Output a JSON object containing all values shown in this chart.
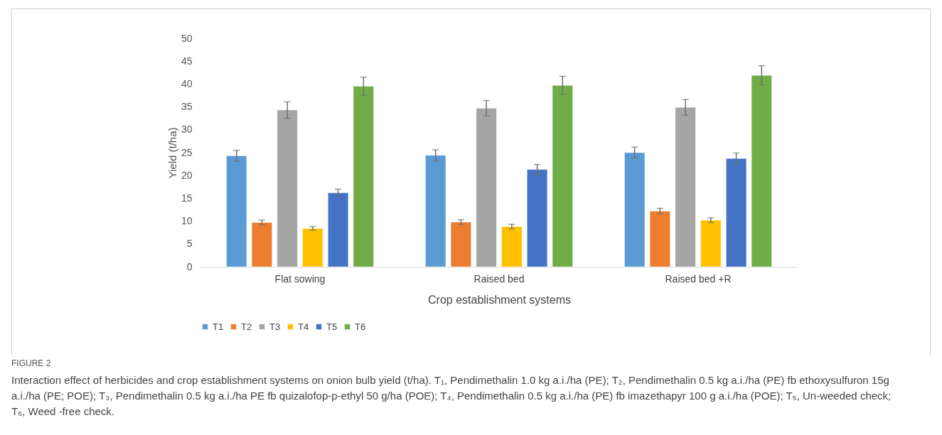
{
  "chart_data": {
    "type": "bar",
    "xlabel": "Crop establishment systems",
    "ylabel": "Yield (t/ha)",
    "categories": [
      "Flat sowing",
      "Raised bed",
      "Raised bed +R"
    ],
    "series": [
      {
        "name": "T1",
        "color": "#5b9bd5",
        "values": [
          24.3,
          24.4,
          25.0
        ],
        "errors": [
          1.2,
          1.2,
          1.2
        ]
      },
      {
        "name": "T2",
        "color": "#ed7d31",
        "values": [
          9.7,
          9.8,
          12.2
        ],
        "errors": [
          0.5,
          0.5,
          0.6
        ]
      },
      {
        "name": "T3",
        "color": "#a5a5a5",
        "values": [
          34.3,
          34.7,
          34.9
        ],
        "errors": [
          1.8,
          1.7,
          1.7
        ]
      },
      {
        "name": "T4",
        "color": "#ffc000",
        "values": [
          8.4,
          8.8,
          10.2
        ],
        "errors": [
          0.4,
          0.5,
          0.5
        ]
      },
      {
        "name": "T5",
        "color": "#4472c4",
        "values": [
          16.2,
          21.3,
          23.7
        ],
        "errors": [
          0.8,
          1.1,
          1.2
        ]
      },
      {
        "name": "T6",
        "color": "#70ad47",
        "values": [
          39.5,
          39.7,
          41.9
        ],
        "errors": [
          2.0,
          2.0,
          2.1
        ]
      }
    ],
    "ylim": [
      0,
      50
    ],
    "yticks": [
      0,
      5,
      10,
      15,
      20,
      25,
      30,
      35,
      40,
      45,
      50
    ],
    "grid": false,
    "legend": "bottom",
    "annotations": [
      "FIGURE 2",
      "Interaction effect of herbicides and crop establishment systems on onion bulb yield (t/ha). T₁, Pendimethalin 1.0 kg a.i./ha (PE); T₂, Pendimethalin 0.5 kg a.i./ha (PE) fb ethoxysulfuron 15g a.i./ha (PE; POE); T₃, Pendimethalin 0.5 kg a.i./ha PE fb quizalofop-p-ethyl 50 g/ha (POE); T₄, Pendimethalin 0.5 kg a.i./ha (PE) fb imazethapyr 100 g a.i./ha (POE); T₅, Un-weeded check; T₆, Weed -free check."
    ]
  }
}
